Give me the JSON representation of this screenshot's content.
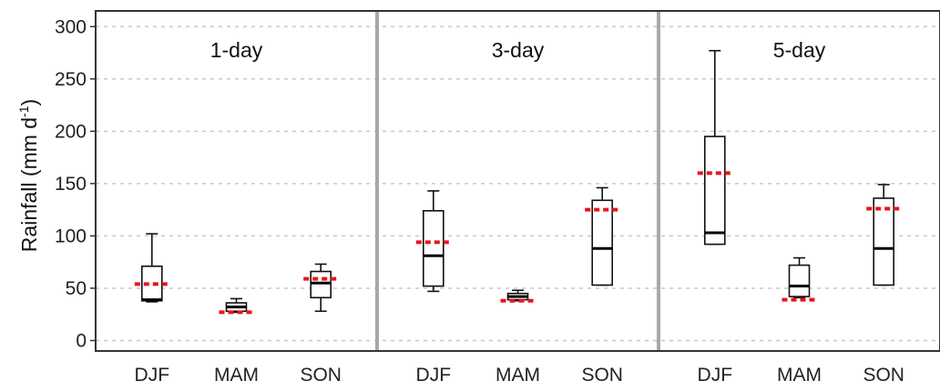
{
  "chart_data": {
    "type": "boxplot",
    "ylabel": "Rainfall (mm d",
    "ylabel_sup": "-1",
    "ylabel_close": ")",
    "ylim": [
      -10,
      315
    ],
    "yticks": [
      "0",
      "50",
      "100",
      "150",
      "200",
      "250",
      "300"
    ],
    "grid": true,
    "categories": [
      "DJF",
      "MAM",
      "SON"
    ],
    "panels": [
      {
        "label": "1-day",
        "boxes": [
          {
            "category": "DJF",
            "whisker_low": 37,
            "q1": 38,
            "median": 39,
            "q3": 71,
            "whisker_high": 102,
            "mean": 54
          },
          {
            "category": "MAM",
            "whisker_low": 27,
            "q1": 28,
            "median": 32,
            "q3": 36,
            "whisker_high": 40,
            "mean": 27
          },
          {
            "category": "SON",
            "whisker_low": 28,
            "q1": 41,
            "median": 55,
            "q3": 66,
            "whisker_high": 73,
            "mean": 59
          }
        ]
      },
      {
        "label": "3-day",
        "boxes": [
          {
            "category": "DJF",
            "whisker_low": 47,
            "q1": 52,
            "median": 81,
            "q3": 124,
            "whisker_high": 143,
            "mean": 94
          },
          {
            "category": "MAM",
            "whisker_low": 38,
            "q1": 39,
            "median": 42,
            "q3": 45,
            "whisker_high": 48,
            "mean": 38
          },
          {
            "category": "SON",
            "whisker_low": 53,
            "q1": 53,
            "median": 88,
            "q3": 134,
            "whisker_high": 146,
            "mean": 125
          }
        ]
      },
      {
        "label": "5-day",
        "boxes": [
          {
            "category": "DJF",
            "whisker_low": 92,
            "q1": 92,
            "median": 103,
            "q3": 195,
            "whisker_high": 277,
            "mean": 160
          },
          {
            "category": "MAM",
            "whisker_low": 41,
            "q1": 42,
            "median": 52,
            "q3": 72,
            "whisker_high": 79,
            "mean": 39
          },
          {
            "category": "SON",
            "whisker_low": 53,
            "q1": 53,
            "median": 88,
            "q3": 136,
            "whisker_high": 149,
            "mean": 126
          }
        ]
      }
    ]
  }
}
